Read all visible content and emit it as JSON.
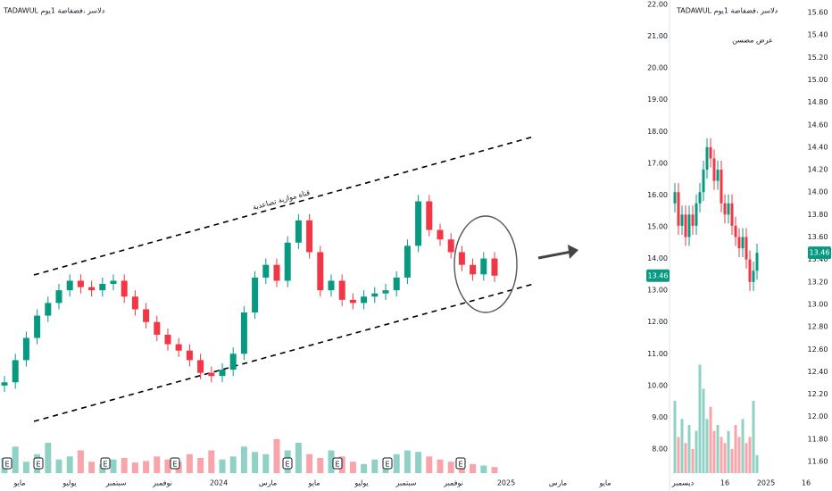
{
  "chart_data": [
    {
      "type": "candlestick",
      "title": "TADAWUL دلاسر ،فضفاضة 1يوم",
      "annotation": "قناة موازية تصاعدية",
      "up_color": "#089981",
      "down_color": "#f23645",
      "categories": [
        "مايو",
        "يوليو",
        "سبتمبر",
        "نوفمبر",
        "2024",
        "مارس",
        "مايو",
        "يوليو",
        "سبتمبر",
        "نوفمبر",
        "2025",
        "مارس",
        "مايو"
      ],
      "open": [
        10.0,
        10.1,
        10.8,
        11.5,
        12.2,
        12.6,
        13.0,
        13.3,
        13.1,
        13.0,
        13.2,
        13.3,
        12.8,
        12.4,
        12.0,
        11.6,
        11.3,
        11.1,
        10.8,
        10.4,
        10.3,
        10.5,
        11.0,
        12.3,
        13.4,
        13.8,
        13.3,
        14.5,
        15.2,
        14.2,
        13.0,
        13.3,
        12.7,
        12.6,
        12.8,
        12.9,
        13.0,
        13.4,
        14.4,
        15.8,
        14.9,
        14.6,
        14.2,
        13.8,
        13.5,
        14.0
      ],
      "high": [
        10.3,
        11.0,
        11.7,
        12.4,
        12.8,
        13.2,
        13.5,
        13.5,
        13.3,
        13.4,
        13.5,
        13.5,
        13.0,
        12.6,
        12.2,
        11.8,
        11.5,
        11.3,
        11.0,
        10.6,
        10.7,
        11.2,
        12.5,
        13.6,
        14.0,
        14.0,
        14.7,
        15.4,
        15.4,
        14.4,
        13.5,
        13.5,
        12.9,
        13.0,
        13.1,
        13.2,
        13.6,
        14.6,
        16.0,
        16.0,
        15.1,
        14.8,
        14.4,
        14.0,
        14.2,
        14.2
      ],
      "low": [
        9.8,
        9.9,
        10.6,
        11.3,
        12.0,
        12.4,
        12.8,
        12.9,
        12.8,
        12.8,
        13.0,
        12.6,
        12.2,
        11.8,
        11.4,
        11.1,
        10.9,
        10.6,
        10.2,
        10.1,
        10.1,
        10.3,
        10.8,
        12.1,
        13.2,
        13.1,
        13.1,
        14.3,
        14.0,
        12.8,
        12.8,
        12.5,
        12.4,
        12.4,
        12.6,
        12.7,
        12.8,
        13.2,
        14.2,
        14.7,
        14.4,
        14.0,
        13.6,
        13.3,
        13.3,
        13.26
      ],
      "close": [
        10.1,
        10.8,
        11.5,
        12.2,
        12.6,
        13.0,
        13.3,
        13.1,
        13.0,
        13.2,
        13.3,
        12.8,
        12.4,
        12.0,
        11.6,
        11.3,
        11.1,
        10.8,
        10.4,
        10.3,
        10.5,
        11.0,
        12.3,
        13.4,
        13.8,
        13.3,
        14.5,
        15.2,
        14.2,
        13.0,
        13.3,
        12.7,
        12.6,
        12.8,
        12.9,
        13.0,
        13.4,
        14.4,
        15.8,
        14.9,
        14.6,
        14.2,
        13.8,
        13.5,
        14.0,
        13.46
      ],
      "volume": [
        20,
        35,
        15,
        25,
        40,
        18,
        22,
        30,
        15,
        12,
        18,
        20,
        14,
        16,
        22,
        18,
        15,
        25,
        20,
        30,
        18,
        22,
        35,
        28,
        25,
        45,
        30,
        40,
        25,
        20,
        30,
        22,
        15,
        12,
        18,
        20,
        25,
        30,
        28,
        22,
        18,
        15,
        14,
        12,
        10,
        8
      ],
      "vlim": [
        0,
        100
      ],
      "last_price": 13.46,
      "events": [
        "E",
        "E",
        "E",
        "E",
        "E",
        "E",
        "E",
        "E"
      ],
      "ylim": [
        8,
        22
      ],
      "yticks": [
        {
          "value": 22,
          "label": "22.00"
        },
        {
          "value": 21,
          "label": "21.00"
        },
        {
          "value": 20,
          "label": "20.00"
        },
        {
          "value": 19,
          "label": "19.00"
        },
        {
          "value": 18,
          "label": "18.00"
        },
        {
          "value": 17,
          "label": "17.00"
        },
        {
          "value": 16,
          "label": "16.00"
        },
        {
          "value": 15,
          "label": "15.00"
        },
        {
          "value": 14,
          "label": "14.00"
        },
        {
          "value": 13,
          "label": "13.00"
        },
        {
          "value": 12,
          "label": "12.00"
        },
        {
          "value": 11,
          "label": "11.00"
        },
        {
          "value": 10,
          "label": "10.00"
        },
        {
          "value": 9,
          "label": "9.00"
        },
        {
          "value": 8,
          "label": "8.00"
        }
      ]
    },
    {
      "type": "candlestick",
      "title": "TADAWUL دلاسر ،فضفاضة 1يوم",
      "annotation": "عرض مضسن",
      "up_color": "#089981",
      "down_color": "#f23645",
      "categories": [
        "ديسمبر",
        "16",
        "2025",
        "16"
      ],
      "open": [
        13.9,
        14.0,
        13.7,
        13.8,
        13.6,
        13.8,
        13.7,
        13.9,
        14.0,
        14.2,
        14.4,
        14.3,
        14.1,
        14.2,
        13.9,
        13.8,
        13.9,
        13.7,
        13.6,
        13.5,
        13.6,
        13.4,
        13.2,
        13.3
      ],
      "high": [
        14.08,
        14.08,
        13.88,
        13.88,
        13.88,
        13.88,
        13.98,
        14.08,
        14.28,
        14.48,
        14.48,
        14.38,
        14.28,
        14.28,
        13.98,
        13.98,
        13.98,
        13.78,
        13.68,
        13.68,
        13.68,
        13.48,
        13.38,
        13.54
      ],
      "low": [
        13.82,
        13.62,
        13.62,
        13.52,
        13.52,
        13.62,
        13.62,
        13.82,
        13.92,
        14.12,
        14.22,
        14.02,
        14.02,
        13.82,
        13.72,
        13.72,
        13.62,
        13.52,
        13.42,
        13.42,
        13.32,
        13.12,
        13.12,
        13.22
      ],
      "close": [
        14.0,
        13.7,
        13.8,
        13.6,
        13.8,
        13.7,
        13.9,
        14.0,
        14.2,
        14.4,
        14.3,
        14.1,
        14.2,
        13.9,
        13.8,
        13.9,
        13.7,
        13.6,
        13.5,
        13.6,
        13.4,
        13.2,
        13.3,
        13.46
      ],
      "volume": [
        60,
        30,
        45,
        25,
        40,
        20,
        35,
        90,
        70,
        45,
        55,
        35,
        40,
        30,
        25,
        35,
        20,
        40,
        30,
        45,
        25,
        30,
        60,
        15
      ],
      "vlim": [
        0,
        100
      ],
      "last_price": 13.46,
      "ylim": [
        11.6,
        15.6
      ],
      "yticks": [
        {
          "value": 15.6,
          "label": "15.60"
        },
        {
          "value": 15.4,
          "label": "15.40"
        },
        {
          "value": 15.2,
          "label": "15.20"
        },
        {
          "value": 15,
          "label": "15.00"
        },
        {
          "value": 14.8,
          "label": "14.80"
        },
        {
          "value": 14.6,
          "label": "14.60"
        },
        {
          "value": 14.4,
          "label": "14.40"
        },
        {
          "value": 14.2,
          "label": "14.20"
        },
        {
          "value": 14,
          "label": "14.00"
        },
        {
          "value": 13.8,
          "label": "13.80"
        },
        {
          "value": 13.6,
          "label": "13.60"
        },
        {
          "value": 13.4,
          "label": "13.40"
        },
        {
          "value": 13.2,
          "label": "13.20"
        },
        {
          "value": 13,
          "label": "13.00"
        },
        {
          "value": 12.8,
          "label": "12.80"
        },
        {
          "value": 12.6,
          "label": "12.60"
        },
        {
          "value": 12.4,
          "label": "12.40"
        },
        {
          "value": 12.2,
          "label": "12.20"
        },
        {
          "value": 12,
          "label": "12.00"
        },
        {
          "value": 11.8,
          "label": "11.80"
        },
        {
          "value": 11.6,
          "label": "11.60"
        }
      ]
    }
  ]
}
